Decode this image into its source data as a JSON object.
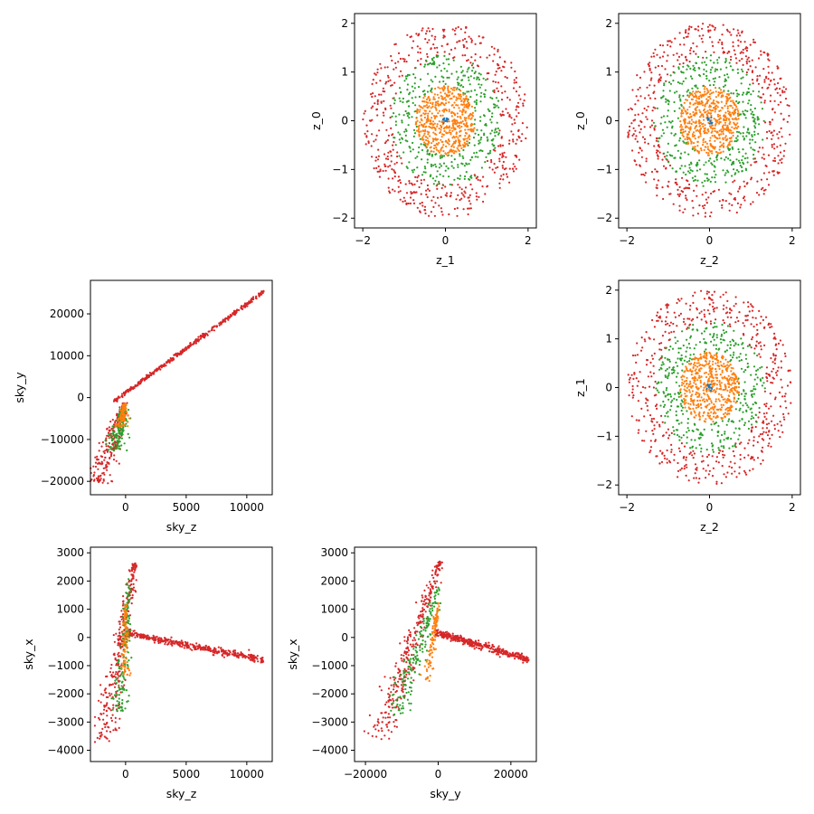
{
  "figure": {
    "colors": {
      "blue": "#1f77b4",
      "orange": "#ff7f0e",
      "green": "#2ca02c",
      "red": "#d62728"
    }
  },
  "chart_data": [
    {
      "id": "z1-z0",
      "type": "scatter",
      "xlabel": "z_1",
      "ylabel": "z_0",
      "xlim": [
        -2.2,
        2.2
      ],
      "ylim": [
        -2.2,
        2.2
      ],
      "xticks": [
        -2,
        0,
        2
      ],
      "xtick_labels": [
        "−2",
        "0",
        "2"
      ],
      "yticks": [
        -2,
        -1,
        0,
        1,
        2
      ],
      "ytick_labels": [
        "−2",
        "−1",
        "0",
        "1",
        "2"
      ],
      "grid": false,
      "series": [
        {
          "color": "#d62728",
          "shape": "ring",
          "r_min": 1.3,
          "r_max": 2.0,
          "n": 520
        },
        {
          "color": "#2ca02c",
          "shape": "ring",
          "r_min": 0.7,
          "r_max": 1.35,
          "n": 380
        },
        {
          "color": "#ff7f0e",
          "shape": "disk",
          "r_max": 0.72,
          "n": 520
        },
        {
          "color": "#1f77b4",
          "shape": "disk",
          "r_max": 0.08,
          "n": 12
        }
      ]
    },
    {
      "id": "z2-z0",
      "type": "scatter",
      "xlabel": "z_2",
      "ylabel": "z_0",
      "xlim": [
        -2.2,
        2.2
      ],
      "ylim": [
        -2.2,
        2.2
      ],
      "xticks": [
        -2,
        0,
        2
      ],
      "xtick_labels": [
        "−2",
        "0",
        "2"
      ],
      "yticks": [
        -2,
        -1,
        0,
        1,
        2
      ],
      "ytick_labels": [
        "−2",
        "−1",
        "0",
        "1",
        "2"
      ],
      "grid": false,
      "series": [
        {
          "color": "#d62728",
          "shape": "ring",
          "r_min": 1.3,
          "r_max": 2.0,
          "n": 520
        },
        {
          "color": "#2ca02c",
          "shape": "ring",
          "r_min": 0.7,
          "r_max": 1.35,
          "n": 380
        },
        {
          "color": "#ff7f0e",
          "shape": "disk",
          "r_max": 0.72,
          "n": 520
        },
        {
          "color": "#1f77b4",
          "shape": "disk",
          "r_max": 0.08,
          "n": 12
        }
      ]
    },
    {
      "id": "z2-z1",
      "type": "scatter",
      "xlabel": "z_2",
      "ylabel": "z_1",
      "xlim": [
        -2.2,
        2.2
      ],
      "ylim": [
        -2.2,
        2.2
      ],
      "xticks": [
        -2,
        0,
        2
      ],
      "xtick_labels": [
        "−2",
        "0",
        "2"
      ],
      "yticks": [
        -2,
        -1,
        0,
        1,
        2
      ],
      "ytick_labels": [
        "−2",
        "−1",
        "0",
        "1",
        "2"
      ],
      "grid": false,
      "series": [
        {
          "color": "#d62728",
          "shape": "ring",
          "r_min": 1.3,
          "r_max": 2.0,
          "n": 520
        },
        {
          "color": "#2ca02c",
          "shape": "ring",
          "r_min": 0.7,
          "r_max": 1.35,
          "n": 380
        },
        {
          "color": "#ff7f0e",
          "shape": "disk",
          "r_max": 0.72,
          "n": 520
        },
        {
          "color": "#1f77b4",
          "shape": "disk",
          "r_max": 0.08,
          "n": 12
        }
      ]
    },
    {
      "id": "skyz-skyy",
      "type": "scatter",
      "xlabel": "sky_z",
      "ylabel": "sky_y",
      "xlim": [
        -2900,
        12100
      ],
      "ylim": [
        -23200,
        28000
      ],
      "xticks": [
        0,
        5000,
        10000
      ],
      "xtick_labels": [
        "0",
        "5000",
        "10000"
      ],
      "yticks": [
        -20000,
        -10000,
        0,
        10000,
        20000
      ],
      "ytick_labels": [
        "−20000",
        "−10000",
        "0",
        "10000",
        "20000"
      ],
      "grid": false,
      "series": [
        {
          "color": "#d62728",
          "shape": "band",
          "from": [
            -1000,
            -1000
          ],
          "to": [
            11400,
            25300
          ],
          "width": 500,
          "n": 420
        },
        {
          "color": "#d62728",
          "shape": "wedge",
          "from": [
            -100,
            -1200
          ],
          "to": [
            -2300,
            -20500
          ],
          "width": 1300,
          "n": 240
        },
        {
          "color": "#2ca02c",
          "shape": "wedge",
          "from": [
            -100,
            -1500
          ],
          "to": [
            -800,
            -12800
          ],
          "width": 900,
          "n": 160
        },
        {
          "color": "#ff7f0e",
          "shape": "wedge",
          "from": [
            -100,
            -1500
          ],
          "to": [
            -300,
            -7000
          ],
          "width": 500,
          "n": 100
        }
      ]
    },
    {
      "id": "skyz-skyx",
      "type": "scatter",
      "xlabel": "sky_z",
      "ylabel": "sky_x",
      "xlim": [
        -2900,
        12100
      ],
      "ylim": [
        -4400,
        3200
      ],
      "xticks": [
        0,
        5000,
        10000
      ],
      "xtick_labels": [
        "0",
        "5000",
        "10000"
      ],
      "yticks": [
        -4000,
        -3000,
        -2000,
        -1000,
        0,
        1000,
        2000,
        3000
      ],
      "ytick_labels": [
        "−4000",
        "−3000",
        "−2000",
        "−1000",
        "0",
        "1000",
        "2000",
        "3000"
      ],
      "grid": false,
      "series": [
        {
          "color": "#d62728",
          "shape": "band",
          "from": [
            0,
            150
          ],
          "to": [
            11400,
            -800
          ],
          "width": 120,
          "n": 420
        },
        {
          "color": "#d62728",
          "shape": "wedge",
          "from": [
            800,
            2700
          ],
          "to": [
            -1900,
            -3700
          ],
          "width": 1000,
          "n": 300
        },
        {
          "color": "#2ca02c",
          "shape": "wedge",
          "from": [
            300,
            2100
          ],
          "to": [
            -500,
            -2700
          ],
          "width": 700,
          "n": 160
        },
        {
          "color": "#ff7f0e",
          "shape": "wedge",
          "from": [
            0,
            1200
          ],
          "to": [
            0,
            -1400
          ],
          "width": 400,
          "n": 100
        }
      ]
    },
    {
      "id": "skyy-skyx",
      "type": "scatter",
      "xlabel": "sky_y",
      "ylabel": "sky_x",
      "xlim": [
        -23000,
        27000
      ],
      "ylim": [
        -4400,
        3200
      ],
      "xticks": [
        -20000,
        0,
        20000
      ],
      "xtick_labels": [
        "−20000",
        "0",
        "20000"
      ],
      "yticks": [
        -4000,
        -3000,
        -2000,
        -1000,
        0,
        1000,
        2000,
        3000
      ],
      "ytick_labels": [
        "−4000",
        "−3000",
        "−2000",
        "−1000",
        "0",
        "1000",
        "2000",
        "3000"
      ],
      "grid": false,
      "series": [
        {
          "color": "#d62728",
          "shape": "band",
          "from": [
            -1000,
            200
          ],
          "to": [
            25000,
            -800
          ],
          "width": 120,
          "n": 420
        },
        {
          "color": "#d62728",
          "shape": "wedge",
          "from": [
            500,
            2700
          ],
          "to": [
            -16000,
            -3500
          ],
          "width": 4500,
          "n": 300
        },
        {
          "color": "#2ca02c",
          "shape": "wedge",
          "from": [
            0,
            1800
          ],
          "to": [
            -11000,
            -2700
          ],
          "width": 3500,
          "n": 170
        },
        {
          "color": "#ff7f0e",
          "shape": "wedge",
          "from": [
            0,
            1200
          ],
          "to": [
            -3000,
            -1500
          ],
          "width": 1500,
          "n": 100
        }
      ]
    }
  ]
}
